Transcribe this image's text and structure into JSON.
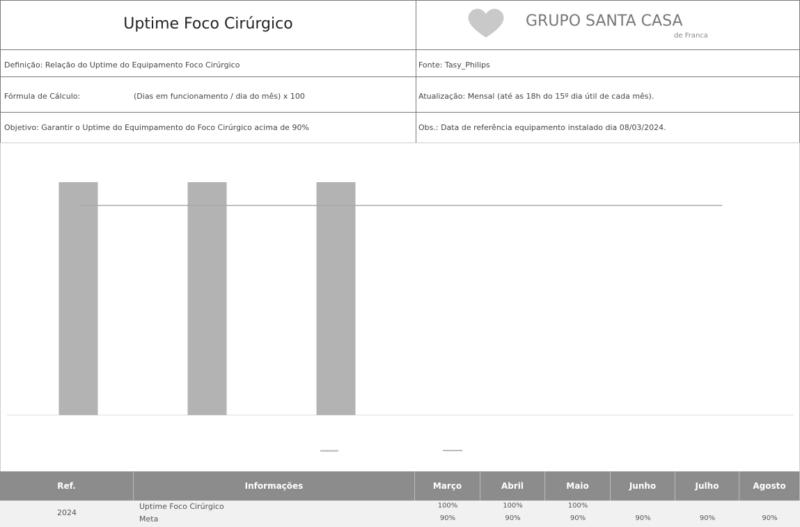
{
  "header": {
    "title": "Uptime Foco Cirúrgico",
    "logo": "GRUPO SANTA CASA",
    "logo_sub": "de Franca"
  },
  "info": {
    "definicao": "Definição: Relação do Uptime do Equipamento Foco Cirúrgico",
    "fonte": "Fonte: Tasy_Philips",
    "formula_label": "Fórmula de Cálculo:",
    "formula": "(Dias em funcionamento / dia do mês) x 100",
    "atualizacao": "Atualização: Mensal (até as 18h do 15º dia útil de cada mês).",
    "objetivo": "Objetivo: Garantir o Uptime do Equimpamento do Foco Cirúrgico acima de 90%",
    "obs": "Obs.: Data de referência equipamento instalado dia 08/03/2024."
  },
  "chart_data": {
    "type": "bar",
    "categories": [
      null,
      null,
      null,
      null,
      null,
      null
    ],
    "series": [
      {
        "type": "bar",
        "color": "#b3b3b3",
        "values": [
          100,
          100,
          100,
          null,
          null,
          null
        ]
      },
      {
        "type": "line",
        "color": "#a8a8a8",
        "values": [
          90,
          90,
          90,
          90,
          90,
          90
        ]
      }
    ],
    "ylim": [
      0,
      100
    ]
  },
  "table": {
    "columns": [
      "Ref.",
      "Informações",
      "Março",
      "Abril",
      "Maio",
      "Junho",
      "Julho",
      "Agosto"
    ],
    "ref": "2024",
    "rows": [
      {
        "label": "Uptime Foco Cirúrgico",
        "values": [
          "100%",
          "100%",
          "100%"
        ]
      },
      {
        "label": "Meta",
        "values": [
          "90%",
          "90%",
          "90%",
          "90%",
          "90%",
          "90%"
        ]
      }
    ]
  }
}
